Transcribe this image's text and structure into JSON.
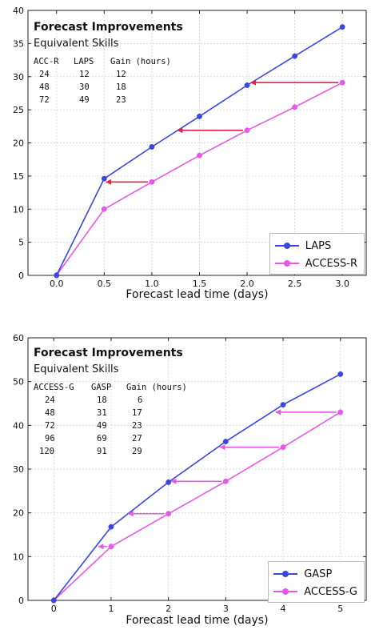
{
  "colors": {
    "blue": "#3a46e0",
    "magenta": "#e45ae6",
    "arrow_red": "#e3204a",
    "arrow_pink": "#e45ae6"
  },
  "chart_data": [
    {
      "type": "line",
      "title": "Forecast Improvements",
      "subtitle": "Equivalent Skills",
      "xlabel": "Forecast lead time (days)",
      "ylabel": "",
      "xlim": [
        -0.3,
        3.25
      ],
      "ylim": [
        0,
        40
      ],
      "xticks": [
        0.0,
        0.5,
        1.0,
        1.5,
        2.0,
        2.5,
        3.0
      ],
      "xtick_labels": [
        "0.0",
        "0.5",
        "1.0",
        "1.5",
        "2.0",
        "2.5",
        "3.0"
      ],
      "yticks": [
        0,
        5,
        10,
        15,
        20,
        25,
        30,
        35,
        40
      ],
      "ytick_labels": [
        "0",
        "5",
        "10",
        "15",
        "20",
        "25",
        "30",
        "35",
        "40"
      ],
      "grid": true,
      "legend_position": "bottom-right",
      "series": [
        {
          "name": "LAPS",
          "color": "#3a46e0",
          "x": [
            0.0,
            0.5,
            1.0,
            1.5,
            2.0,
            2.5,
            3.0
          ],
          "y": [
            0,
            14.6,
            19.4,
            24.0,
            28.7,
            33.1,
            37.5
          ]
        },
        {
          "name": "ACCESS-R",
          "color": "#e45ae6",
          "x": [
            0.0,
            0.5,
            1.0,
            1.5,
            2.0,
            2.5,
            3.0
          ],
          "y": [
            0,
            10.0,
            14.1,
            18.1,
            21.9,
            25.4,
            29.1
          ]
        }
      ],
      "arrows": [
        {
          "from": [
            1.0,
            14.1
          ],
          "to": [
            0.52,
            14.1
          ]
        },
        {
          "from": [
            2.0,
            21.9
          ],
          "to": [
            1.27,
            21.9
          ]
        },
        {
          "from": [
            3.0,
            29.1
          ],
          "to": [
            2.04,
            29.1
          ]
        }
      ],
      "arrow_color": "#e3204a",
      "table": {
        "headers": [
          "ACC-R",
          "LAPS",
          "Gain (hours)"
        ],
        "rows": [
          [
            "24",
            "12",
            "12"
          ],
          [
            "48",
            "30",
            "18"
          ],
          [
            "72",
            "49",
            "23"
          ]
        ]
      }
    },
    {
      "type": "line",
      "title": "Forecast Improvements",
      "subtitle": "Equivalent Skills",
      "xlabel": "Forecast lead time (days)",
      "ylabel": "",
      "xlim": [
        -0.45,
        5.45
      ],
      "ylim": [
        0,
        60
      ],
      "xticks": [
        0,
        1,
        2,
        3,
        4,
        5
      ],
      "xtick_labels": [
        "0",
        "1",
        "2",
        "3",
        "4",
        "5"
      ],
      "yticks": [
        0,
        10,
        20,
        30,
        40,
        50,
        60
      ],
      "ytick_labels": [
        "0",
        "10",
        "20",
        "30",
        "40",
        "50",
        "60"
      ],
      "grid": true,
      "legend_position": "bottom-right",
      "series": [
        {
          "name": "GASP",
          "color": "#3a46e0",
          "x": [
            0,
            1,
            2,
            3,
            4,
            5
          ],
          "y": [
            0,
            16.8,
            27.0,
            36.3,
            44.7,
            51.7
          ]
        },
        {
          "name": "ACCESS-G",
          "color": "#e45ae6",
          "x": [
            0,
            1,
            2,
            3,
            4,
            5
          ],
          "y": [
            0,
            12.3,
            19.8,
            27.2,
            35.0,
            43.0
          ]
        }
      ],
      "arrows": [
        {
          "from": [
            1.0,
            12.3
          ],
          "to": [
            0.78,
            12.3
          ]
        },
        {
          "from": [
            2.0,
            19.8
          ],
          "to": [
            1.3,
            19.8
          ]
        },
        {
          "from": [
            3.0,
            27.2
          ],
          "to": [
            2.05,
            27.2
          ]
        },
        {
          "from": [
            4.0,
            35.0
          ],
          "to": [
            2.9,
            35.0
          ]
        },
        {
          "from": [
            5.0,
            43.0
          ],
          "to": [
            3.87,
            43.0
          ]
        }
      ],
      "arrow_color": "#e45ae6",
      "table": {
        "headers": [
          "ACCESS-G",
          "GASP",
          "Gain (hours)"
        ],
        "rows": [
          [
            "24",
            "18",
            "6"
          ],
          [
            "48",
            "31",
            "17"
          ],
          [
            "72",
            "49",
            "23"
          ],
          [
            "96",
            "69",
            "27"
          ],
          [
            "120",
            "91",
            "29"
          ]
        ]
      }
    }
  ]
}
